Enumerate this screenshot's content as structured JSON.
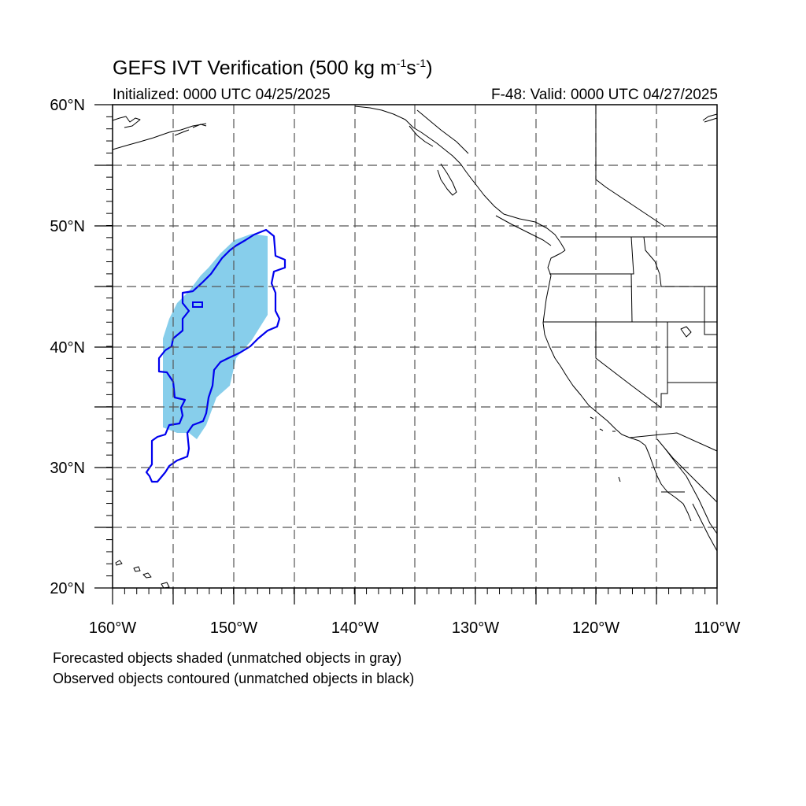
{
  "title": {
    "main": "GEFS IVT Verification (500 kg m",
    "exp1": "-1",
    "mid": "s",
    "exp2": "-1",
    "end": ")"
  },
  "initialized": "Initialized: 0000 UTC 04/25/2025",
  "valid": "F-48: Valid: 0000 UTC 04/27/2025",
  "lat_labels": [
    "60°N",
    "50°N",
    "40°N",
    "30°N",
    "20°N"
  ],
  "lon_labels": [
    "160°W",
    "150°W",
    "140°W",
    "130°W",
    "120°W",
    "110°W"
  ],
  "map_extent": {
    "lon": [
      -160,
      -110
    ],
    "lat": [
      20,
      60
    ]
  },
  "colors": {
    "forecast_fill": "#87ceeb",
    "observed_contour": "#0000ee",
    "coast": "#000000"
  },
  "notes": [
    "Forecasted objects shaded (unmatched objects in gray)",
    "Observed objects contoured (unmatched objects in black)"
  ]
}
